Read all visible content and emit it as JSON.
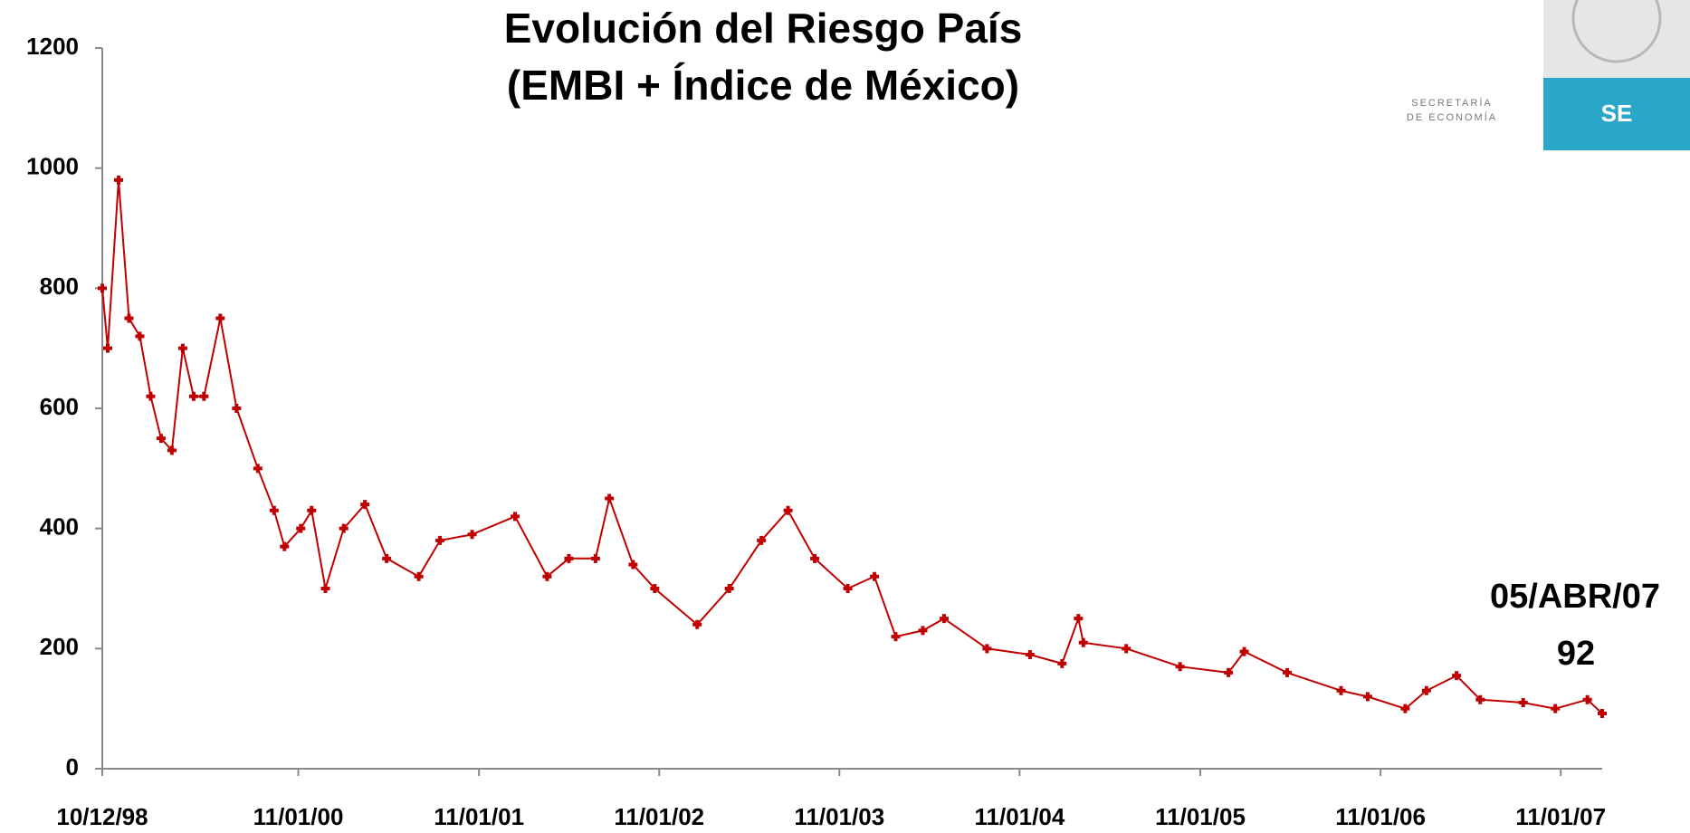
{
  "logo": {
    "line1": "SECRETARÍA",
    "line2": "DE ECONOMÍA",
    "badge": "SE"
  },
  "chart_data": {
    "type": "line",
    "title": "Evolución del Riesgo País",
    "subtitle": "(EMBI + Índice de México)",
    "color": "#c00000",
    "x": [
      "1998-12-10",
      "1998-12-21",
      "1999-01-12",
      "1999-02-02",
      "1999-02-24",
      "1999-03-18",
      "1999-04-08",
      "1999-04-30",
      "1999-05-22",
      "1999-06-13",
      "1999-07-04",
      "1999-08-06",
      "1999-09-08",
      "1999-10-21",
      "1999-11-23",
      "1999-12-14",
      "2000-01-16",
      "2000-02-07",
      "2000-03-06",
      "2000-04-12",
      "2000-05-25",
      "2000-07-08",
      "2000-09-11",
      "2000-10-24",
      "2000-12-28",
      "2001-03-25",
      "2001-05-29",
      "2001-07-12",
      "2001-09-04",
      "2001-10-02",
      "2001-11-19",
      "2002-01-02",
      "2002-03-29",
      "2002-06-02",
      "2002-08-06",
      "2002-09-29",
      "2002-11-22",
      "2003-01-28",
      "2003-03-23",
      "2003-05-05",
      "2003-06-29",
      "2003-08-11",
      "2003-11-06",
      "2004-02-01",
      "2004-04-06",
      "2004-05-09",
      "2004-05-19",
      "2004-08-14",
      "2004-12-01",
      "2005-03-09",
      "2005-04-10",
      "2005-07-06",
      "2005-10-23",
      "2005-12-16",
      "2006-03-02",
      "2006-04-14",
      "2006-06-14",
      "2006-08-01",
      "2006-10-27",
      "2006-12-31",
      "2007-03-06",
      "2007-04-05"
    ],
    "values": [
      800,
      700,
      980,
      750,
      720,
      620,
      550,
      530,
      700,
      620,
      620,
      750,
      600,
      500,
      430,
      370,
      400,
      430,
      300,
      400,
      440,
      350,
      320,
      380,
      390,
      420,
      320,
      350,
      350,
      450,
      340,
      300,
      240,
      300,
      380,
      430,
      350,
      300,
      320,
      220,
      230,
      250,
      200,
      190,
      175,
      250,
      210,
      200,
      170,
      160,
      195,
      160,
      130,
      120,
      100,
      130,
      155,
      115,
      110,
      100,
      115,
      92
    ],
    "xlim": [
      "1998-12-10",
      "2007-04-05"
    ],
    "xticks": [
      {
        "value": "1998-12-10",
        "label": "10/12/98"
      },
      {
        "value": "2000-01-11",
        "label": "11/01/00"
      },
      {
        "value": "2001-01-11",
        "label": "11/01/01"
      },
      {
        "value": "2002-01-11",
        "label": "11/01/02"
      },
      {
        "value": "2003-01-11",
        "label": "11/01/03"
      },
      {
        "value": "2004-01-11",
        "label": "11/01/04"
      },
      {
        "value": "2005-01-11",
        "label": "11/01/05"
      },
      {
        "value": "2006-01-11",
        "label": "11/01/06"
      },
      {
        "value": "2007-01-11",
        "label": "11/01/07"
      }
    ],
    "ylim": [
      0,
      1200
    ],
    "yticks": [
      0,
      200,
      400,
      600,
      800,
      1000,
      1200
    ],
    "grid": false,
    "annotation": "05/ABR/07"
  }
}
